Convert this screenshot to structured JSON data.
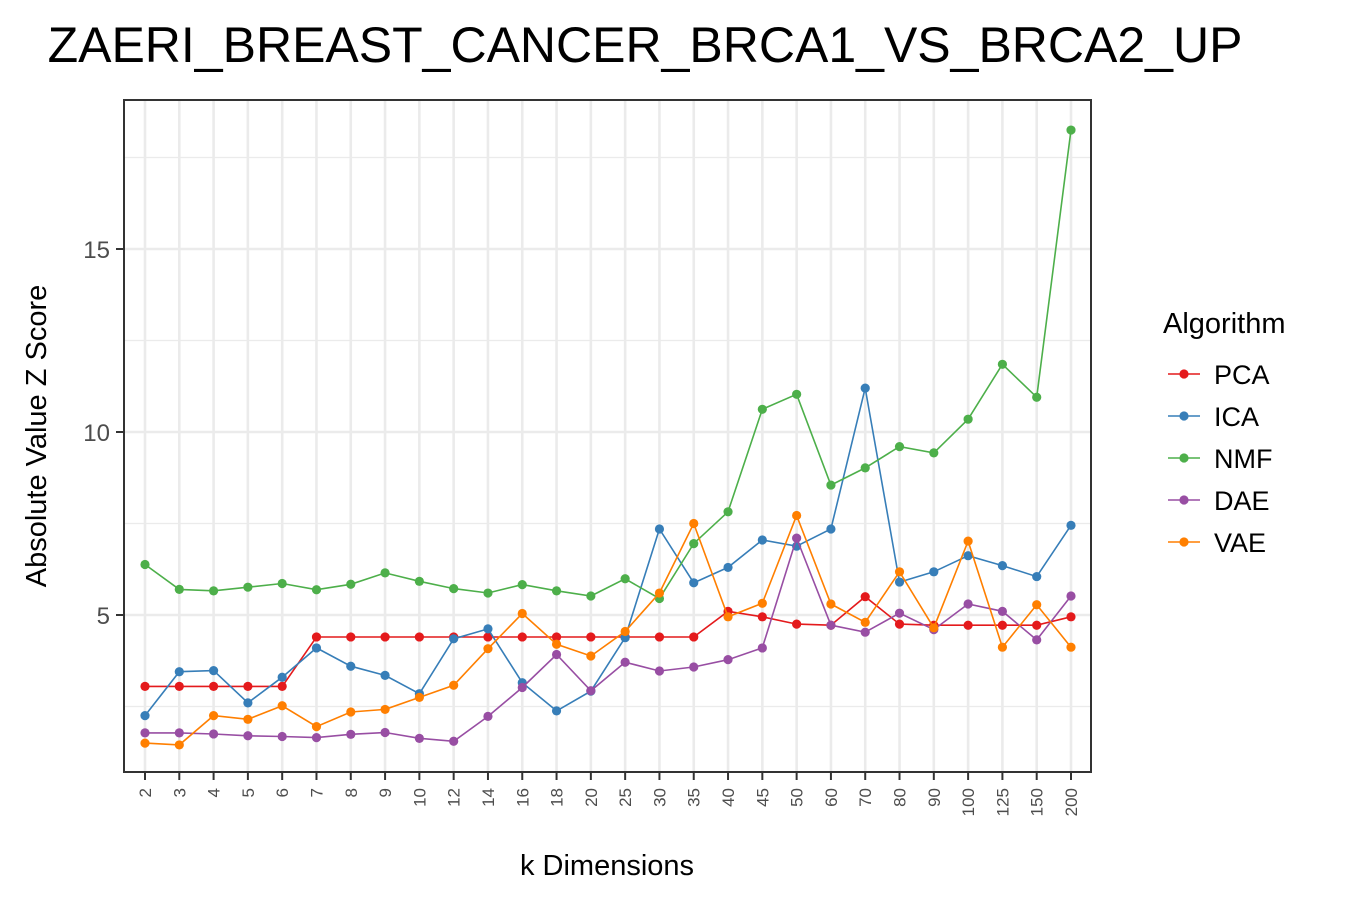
{
  "chart_data": {
    "type": "line",
    "title": "ZAERI_BREAST_CANCER_BRCA1_VS_BRCA2_UP",
    "xlabel": "k Dimensions",
    "ylabel": "Absolute Value Z Score",
    "categories": [
      "2",
      "3",
      "4",
      "5",
      "6",
      "7",
      "8",
      "9",
      "10",
      "12",
      "14",
      "16",
      "18",
      "20",
      "25",
      "30",
      "35",
      "40",
      "45",
      "50",
      "60",
      "70",
      "80",
      "90",
      "100",
      "125",
      "150",
      "200"
    ],
    "yticks": [
      5,
      10,
      15
    ],
    "ylim": [
      1.2,
      19.0
    ],
    "grid": true,
    "legend": {
      "title": "Algorithm",
      "position": "right"
    },
    "series": [
      {
        "name": "PCA",
        "color": "#E41A1C",
        "values": [
          3.05,
          3.05,
          3.05,
          3.05,
          3.05,
          4.4,
          4.4,
          4.4,
          4.4,
          4.4,
          4.4,
          4.4,
          4.4,
          4.4,
          4.4,
          4.4,
          4.4,
          5.1,
          4.95,
          4.75,
          4.72,
          5.5,
          4.75,
          4.72,
          4.72,
          4.72,
          4.72,
          4.95
        ]
      },
      {
        "name": "ICA",
        "color": "#377EB8",
        "values": [
          2.25,
          3.45,
          3.48,
          2.6,
          3.3,
          4.1,
          3.6,
          3.35,
          2.85,
          4.35,
          4.62,
          3.15,
          2.38,
          2.92,
          4.38,
          7.35,
          5.88,
          6.3,
          7.05,
          6.88,
          7.35,
          11.2,
          5.9,
          6.18,
          6.62,
          6.35,
          6.05,
          7.45
        ]
      },
      {
        "name": "NMF",
        "color": "#4DAF4A",
        "values": [
          6.38,
          5.7,
          5.66,
          5.76,
          5.86,
          5.69,
          5.84,
          6.15,
          5.92,
          5.72,
          5.6,
          5.83,
          5.66,
          5.52,
          5.99,
          5.45,
          6.95,
          7.82,
          10.62,
          11.03,
          8.55,
          9.02,
          9.6,
          9.43,
          10.35,
          11.85,
          10.95,
          18.25
        ]
      },
      {
        "name": "DAE",
        "color": "#984EA3",
        "values": [
          1.78,
          1.78,
          1.75,
          1.7,
          1.68,
          1.65,
          1.74,
          1.79,
          1.63,
          1.55,
          2.23,
          3.02,
          3.92,
          2.93,
          3.71,
          3.47,
          3.58,
          3.78,
          4.1,
          7.1,
          4.72,
          4.53,
          5.05,
          4.6,
          5.3,
          5.1,
          4.32,
          5.52
        ]
      },
      {
        "name": "VAE",
        "color": "#FF7F00",
        "values": [
          1.5,
          1.45,
          2.25,
          2.15,
          2.52,
          1.95,
          2.35,
          2.42,
          2.75,
          3.08,
          4.08,
          5.04,
          4.2,
          3.88,
          4.55,
          5.6,
          7.5,
          4.95,
          5.32,
          7.72,
          5.3,
          4.8,
          6.18,
          4.65,
          7.02,
          4.12,
          5.28,
          4.12
        ]
      }
    ]
  }
}
